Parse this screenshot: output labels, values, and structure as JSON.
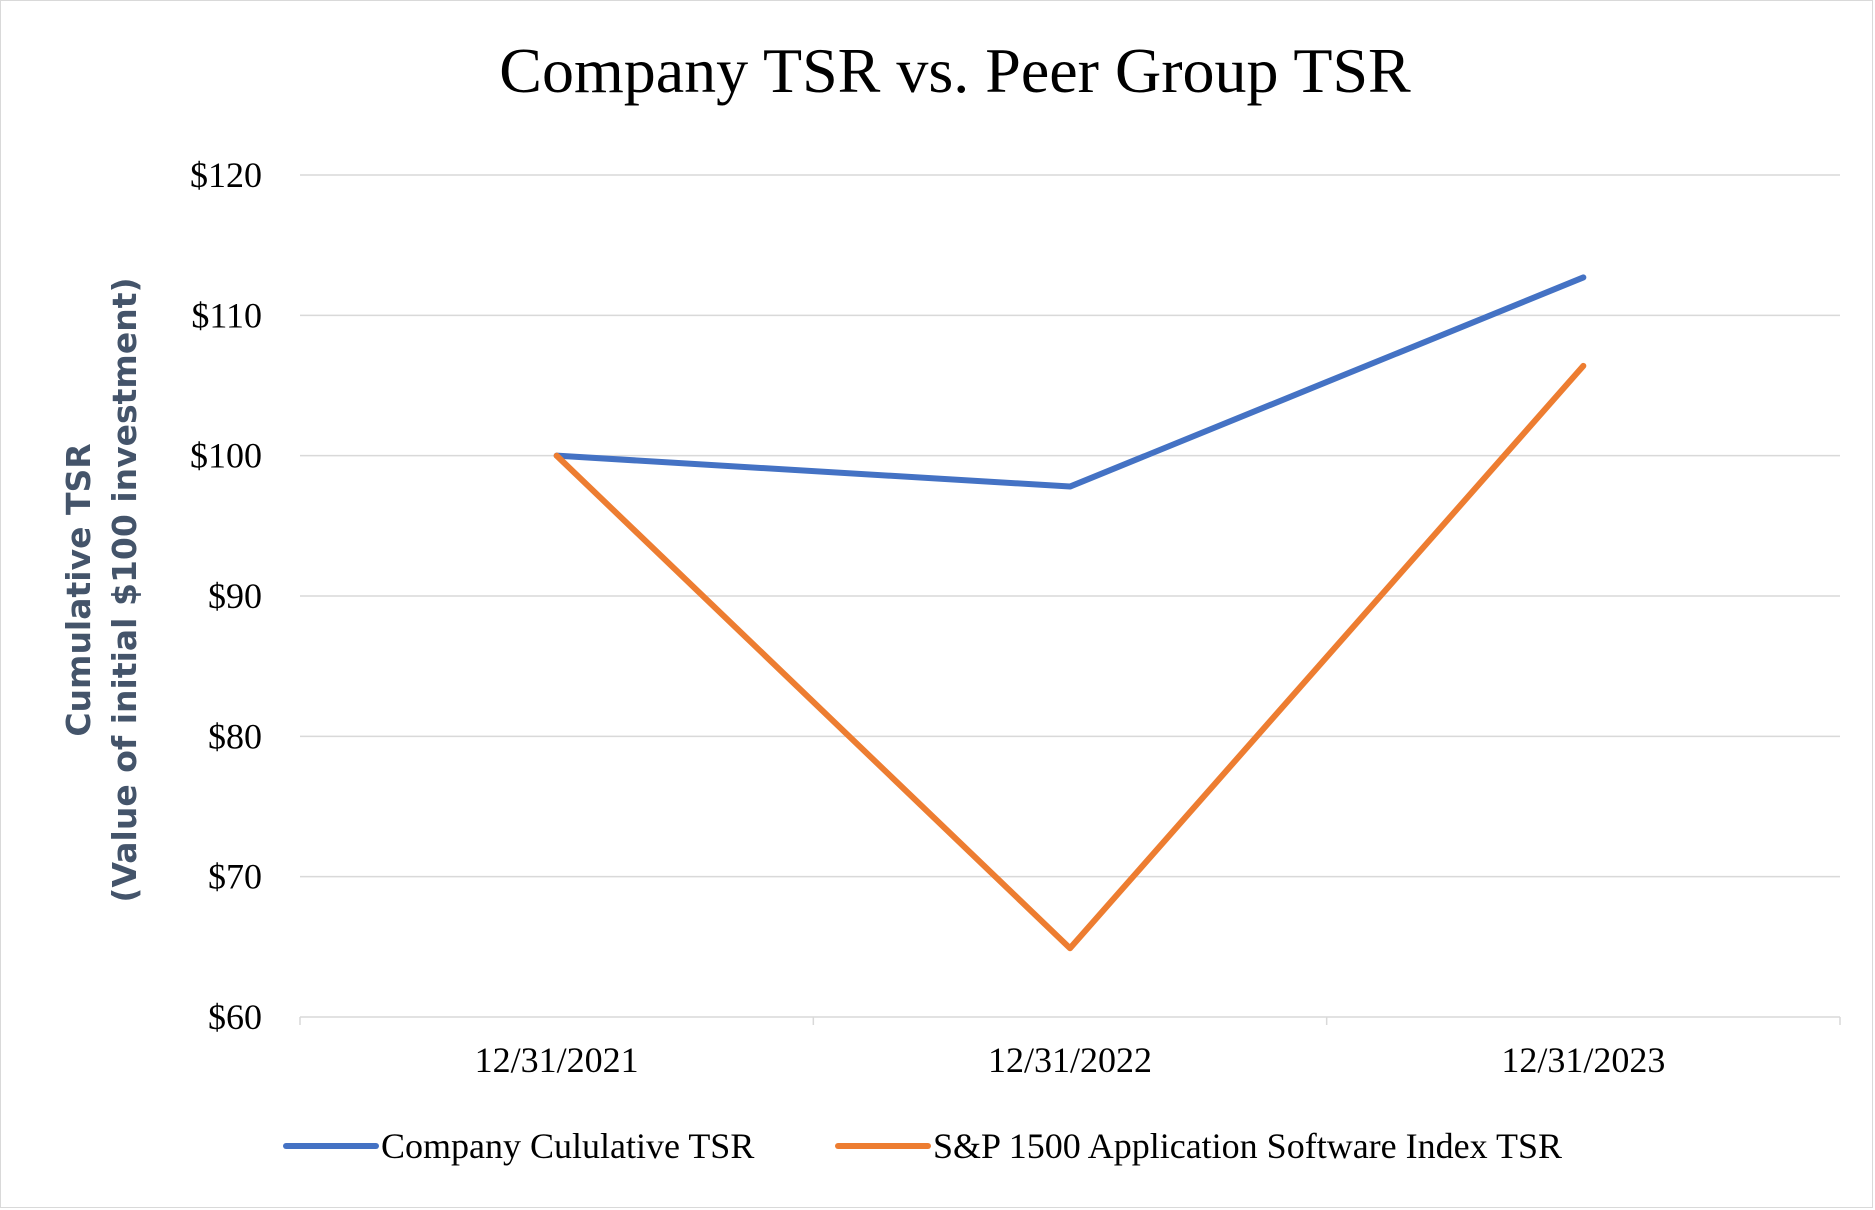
{
  "chart_data": {
    "type": "line",
    "title": "Company TSR vs. Peer Group TSR",
    "xlabel": "",
    "ylabel_lines": [
      "Cumulative TSR",
      "(Value of initial $100 investment)"
    ],
    "categories": [
      "12/31/2021",
      "12/31/2022",
      "12/31/2023"
    ],
    "ylim": [
      60,
      120
    ],
    "yticks": [
      60,
      70,
      80,
      90,
      100,
      110,
      120
    ],
    "ytick_labels": [
      "$60",
      "$70",
      "$80",
      "$90",
      "$100",
      "$110",
      "$120"
    ],
    "grid": true,
    "legend_position": "bottom",
    "series": [
      {
        "name": "Company Cululative TSR",
        "color": "#4472c4",
        "values": [
          100,
          97.8,
          112.7
        ]
      },
      {
        "name": "S&P 1500 Application Software Index TSR",
        "color": "#ed7d31",
        "values": [
          100,
          64.9,
          106.4
        ]
      }
    ]
  }
}
